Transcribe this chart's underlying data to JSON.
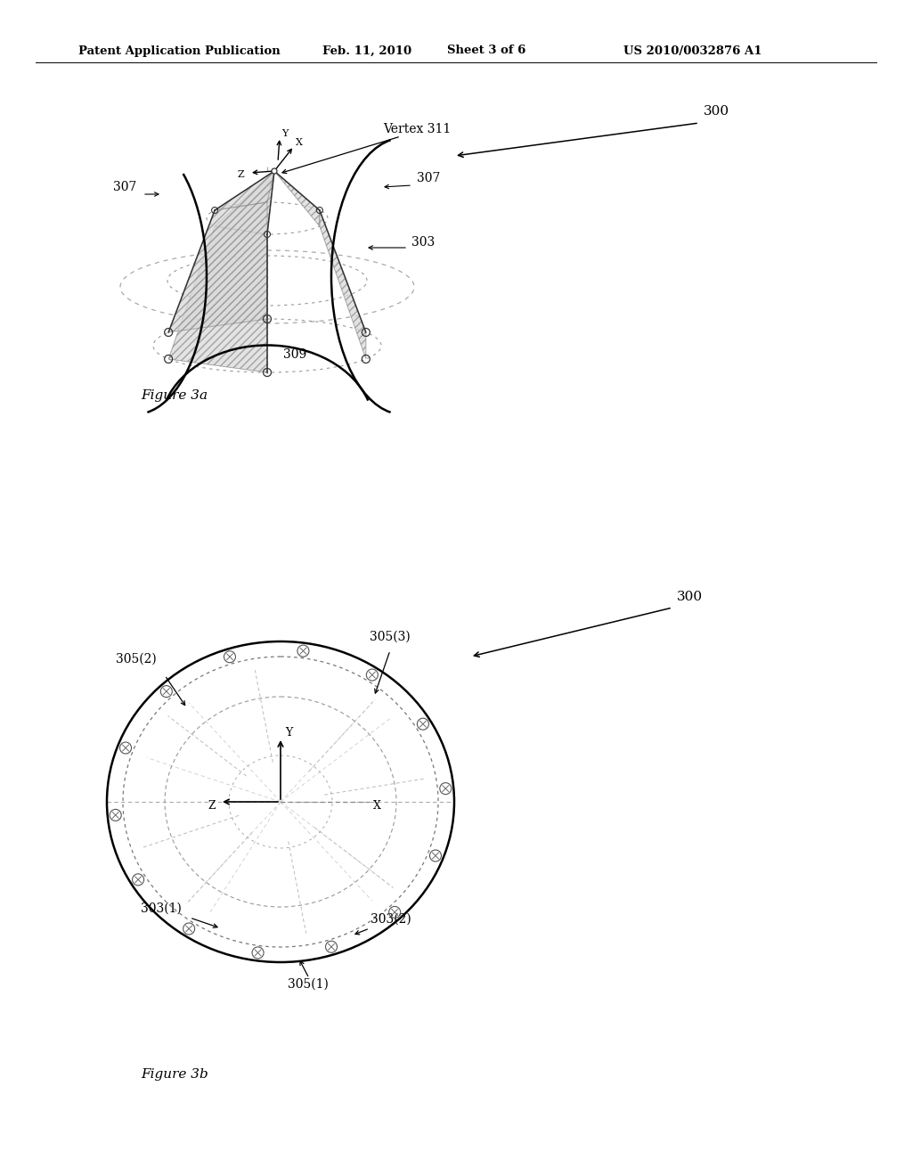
{
  "background_color": "#ffffff",
  "header_text": "Patent Application Publication",
  "header_date": "Feb. 11, 2010",
  "header_sheet": "Sheet 3 of 6",
  "header_patent": "US 2010/0032876 A1",
  "fig3a_label": "Figure 3a",
  "fig3b_label": "Figure 3b",
  "line_color": "#000000",
  "dark_gray": "#333333",
  "med_gray": "#666666",
  "light_gray": "#999999",
  "dash_gray": "#aaaaaa",
  "text_color": "#000000"
}
